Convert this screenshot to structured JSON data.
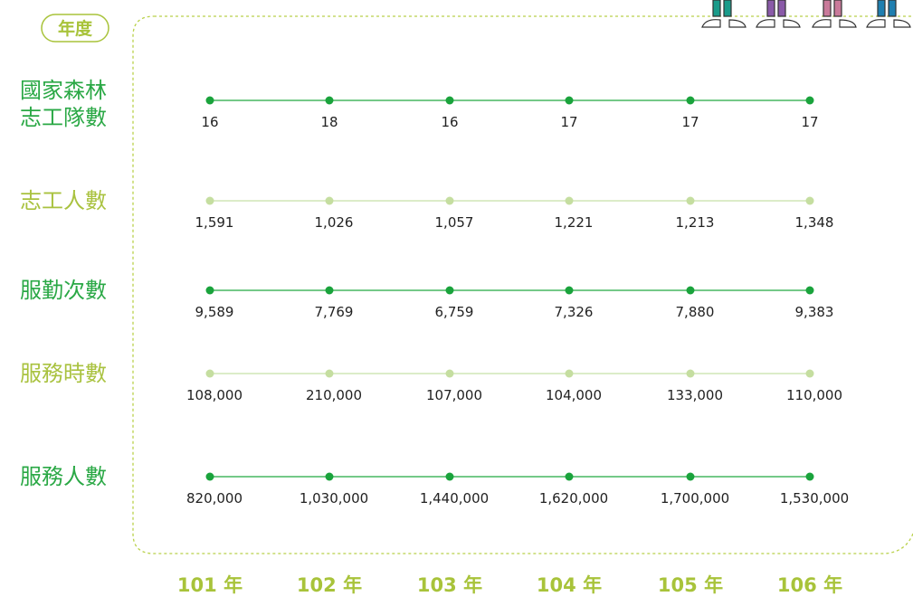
{
  "header": {
    "year_label": "年度"
  },
  "years": [
    "101 年",
    "102 年",
    "103 年",
    "104 年",
    "105 年",
    "106 年"
  ],
  "rows": [
    {
      "label": [
        "國家森林",
        "志工隊數"
      ],
      "values": [
        "16",
        "18",
        "16",
        "17",
        "17",
        "17"
      ]
    },
    {
      "label": [
        "志工人數"
      ],
      "values": [
        "1,591",
        "1,026",
        "1,057",
        "1,221",
        "1,213",
        "1,348"
      ]
    },
    {
      "label": [
        "服勤次數"
      ],
      "values": [
        "9,589",
        "7,769",
        "6,759",
        "7,326",
        "7,880",
        "9,383"
      ]
    },
    {
      "label": [
        "服務時數"
      ],
      "values": [
        "108,000",
        "210,000",
        "107,000",
        "104,000",
        "133,000",
        "110,000"
      ]
    },
    {
      "label": [
        "服務人數"
      ],
      "values": [
        "820,000",
        "1,030,000",
        "1,440,000",
        "1,620,000",
        "1,700,000",
        "1,530,000"
      ]
    }
  ]
}
